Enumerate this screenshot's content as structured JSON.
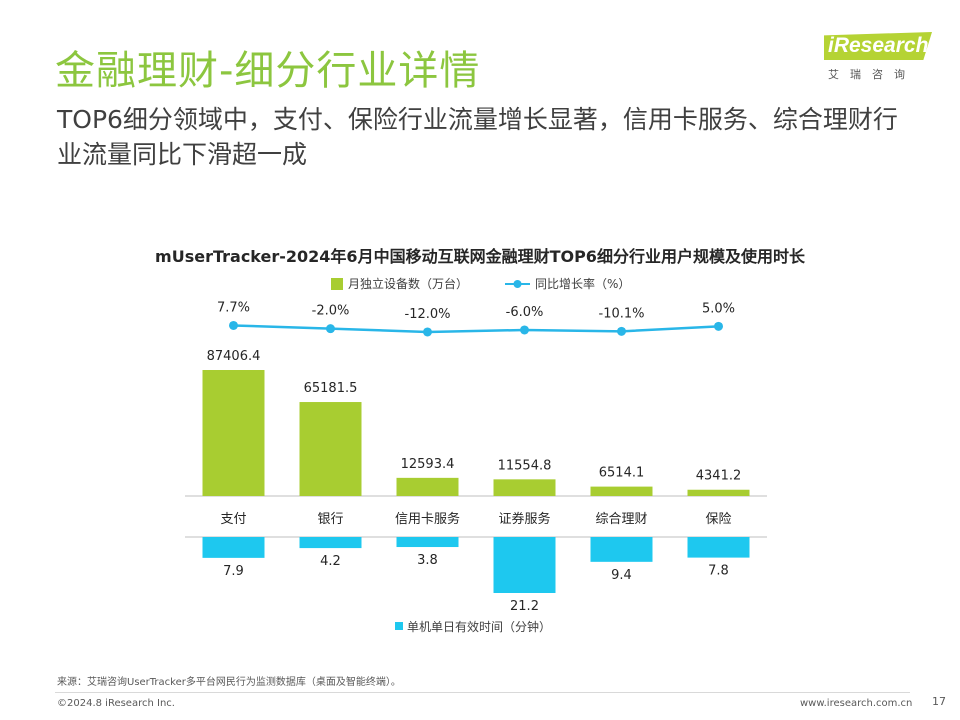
{
  "header": {
    "title": "金融理财-细分行业详情",
    "subtitle": "TOP6细分领域中，支付、保险行业流量增长显著，信用卡服务、综合理财行业流量同比下滑超一成"
  },
  "logo": {
    "name": "iResearch",
    "tagline": "艾瑞咨询"
  },
  "footer": {
    "source": "来源：艾瑞咨询UserTracker多平台网民行为监测数据库（桌面及智能终端）。",
    "copyright": "©2024.8 iResearch Inc.",
    "website": "www.iresearch.com.cn",
    "page": "17"
  },
  "colors": {
    "title_green": "#8cc63f",
    "bar_green": "#a8cd31",
    "line_blue": "#29b6e8",
    "bar_cyan": "#1ec8ef"
  },
  "chart_data": {
    "type": "bar",
    "title": "mUserTracker-2024年6月中国移动互联网金融理财TOP6细分行业用户规模及使用时长",
    "categories": [
      "支付",
      "银行",
      "信用卡服务",
      "证券服务",
      "综合理财",
      "保险"
    ],
    "series": [
      {
        "name": "月独立设备数（万台）",
        "type": "bar",
        "values": [
          87406.4,
          65181.5,
          12593.4,
          11554.8,
          6514.1,
          4341.2
        ],
        "labels": [
          "87406.4",
          "65181.5",
          "12593.4",
          "11554.8",
          "6514.1",
          "4341.2"
        ],
        "color": "#a8cd31"
      },
      {
        "name": "同比增长率（%）",
        "type": "line",
        "values": [
          7.7,
          -2.0,
          -12.0,
          -6.0,
          -10.1,
          5.0
        ],
        "labels": [
          "7.7%",
          "-2.0%",
          "-12.0%",
          "-6.0%",
          "-10.1%",
          "5.0%"
        ],
        "color": "#29b6e8"
      },
      {
        "name": "单机单日有效时间（分钟）",
        "type": "bar",
        "orientation": "downward",
        "values": [
          7.9,
          4.2,
          3.8,
          21.2,
          9.4,
          7.8
        ],
        "labels": [
          "7.9",
          "4.2",
          "3.8",
          "21.2",
          "9.4",
          "7.8"
        ],
        "color": "#1ec8ef"
      }
    ],
    "legend_position": "top-center and bottom-center",
    "grid": false
  }
}
